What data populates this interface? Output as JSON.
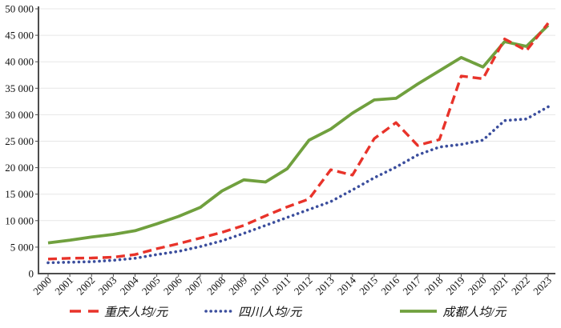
{
  "chart_data": {
    "type": "line",
    "title": "",
    "xlabel": "",
    "ylabel": "",
    "x": [
      2000,
      2001,
      2002,
      2003,
      2004,
      2005,
      2006,
      2007,
      2008,
      2009,
      2010,
      2011,
      2012,
      2013,
      2014,
      2015,
      2016,
      2017,
      2018,
      2019,
      2020,
      2021,
      2022,
      2023
    ],
    "ylim": [
      0,
      50000
    ],
    "ytick_step": 5000,
    "grid": "horizontal",
    "legend_position": "bottom",
    "series": [
      {
        "name": "重庆人均/元",
        "color": "#e8332a",
        "style": "dashed",
        "values": [
          2750,
          2900,
          2950,
          3100,
          3600,
          4700,
          5650,
          6700,
          7800,
          9100,
          10900,
          12600,
          14100,
          19600,
          18600,
          25500,
          28500,
          24200,
          25300,
          37300,
          36800,
          44300,
          42100,
          47300
        ]
      },
      {
        "name": "四川人均/元",
        "color": "#3b4e9d",
        "style": "dotted",
        "values": [
          2050,
          2150,
          2250,
          2500,
          2900,
          3600,
          4200,
          5100,
          6200,
          7600,
          9100,
          10600,
          12100,
          13600,
          15800,
          18100,
          20100,
          22400,
          23900,
          24400,
          25200,
          28900,
          29200,
          31500
        ]
      },
      {
        "name": "成都人均/元",
        "color": "#70a03e",
        "style": "solid",
        "values": [
          5800,
          6300,
          6900,
          7400,
          8100,
          9400,
          10800,
          12500,
          15600,
          17700,
          17300,
          19800,
          25200,
          27300,
          30300,
          32800,
          33100,
          35800,
          38300,
          40800,
          39000,
          43800,
          42900,
          46900
        ]
      }
    ]
  },
  "axis": {
    "y_tick_labels": [
      "0",
      "5 000",
      "10 000",
      "15 000",
      "20 000",
      "25 000",
      "30 000",
      "35 000",
      "40 000",
      "45 000",
      "50 000"
    ],
    "x_tick_labels": [
      "2000",
      "2001",
      "2002",
      "2003",
      "2004",
      "2005",
      "2006",
      "2007",
      "2008",
      "2009",
      "2010",
      "2011",
      "2012",
      "2013",
      "2014",
      "2015",
      "2016",
      "2017",
      "2018",
      "2019",
      "2020",
      "2021",
      "2022",
      "2023"
    ]
  },
  "colors": {
    "gridline": "#e7e7e7",
    "axis": "#4d4d4d",
    "tick_text": "#111111"
  }
}
